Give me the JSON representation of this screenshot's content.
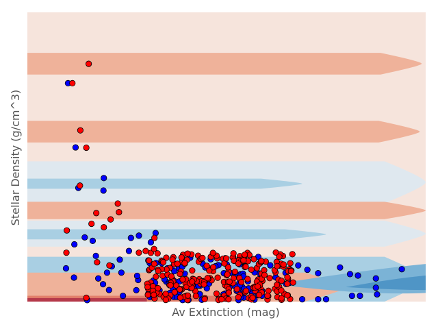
{
  "chart_data": {
    "type": "scatter",
    "title": "",
    "xlabel": "Av Extinction (mag)",
    "ylabel": "Stellar Density (g/cm^3)",
    "xlim": [
      0,
      1
    ],
    "ylim": [
      0,
      1
    ],
    "grid": false,
    "legend": "none",
    "background": "classifier decision-boundary contour (filled)",
    "colors": {
      "class_red": "#ff0000",
      "class_blue": "#0000ff",
      "marker_edge": "#000000",
      "bg_neutral": "#f6e4dc",
      "band_red_light": "#f3c6b4",
      "band_red": "#efb29a",
      "band_red_dark": "#e27f6a",
      "band_red_darkest": "#b5394a",
      "band_blue_pale": "#dfe8ef",
      "band_blue_light": "#a9cfe3",
      "band_blue": "#7bb3d6",
      "band_blue_dark": "#4f95c6"
    },
    "contour_bands": [
      {
        "class": "red",
        "y_min": 0.785,
        "y_max": 0.86,
        "x_extent": 0.99
      },
      {
        "class": "red",
        "y_min": 0.55,
        "y_max": 0.625,
        "x_extent": 0.985
      },
      {
        "class": "blue_pale",
        "y_min": 0.34,
        "y_max": 0.485,
        "x_extent": 1.0
      },
      {
        "class": "blue",
        "y_min": 0.39,
        "y_max": 0.425,
        "x_extent": 0.69
      },
      {
        "class": "red",
        "y_min": 0.285,
        "y_max": 0.345,
        "x_extent": 1.0
      },
      {
        "class": "blue_pale",
        "y_min": 0.19,
        "y_max": 0.28,
        "x_extent": 1.0
      },
      {
        "class": "blue",
        "y_min": 0.215,
        "y_max": 0.25,
        "x_extent": 0.75
      },
      {
        "class": "blue",
        "y_min": 0.0,
        "y_max": 0.155,
        "x_extent": 1.0
      },
      {
        "class": "red",
        "y_min": 0.0,
        "y_max": 0.1,
        "x_extent": 0.8
      },
      {
        "class": "red_dark",
        "y_min": 0.0,
        "y_max": 0.02,
        "x_extent": 0.6
      }
    ],
    "series": [
      {
        "class": "red",
        "points": [
          [
            0.154,
            0.822
          ],
          [
            0.113,
            0.755
          ],
          [
            0.133,
            0.592
          ],
          [
            0.148,
            0.532
          ],
          [
            0.132,
            0.401
          ],
          [
            0.227,
            0.339
          ],
          [
            0.23,
            0.309
          ],
          [
            0.173,
            0.306
          ],
          [
            0.209,
            0.284
          ],
          [
            0.161,
            0.269
          ],
          [
            0.192,
            0.257
          ],
          [
            0.099,
            0.246
          ],
          [
            0.319,
            0.22
          ],
          [
            0.098,
            0.169
          ],
          [
            0.175,
            0.136
          ],
          [
            0.206,
            0.125
          ],
          [
            0.148,
            0.013
          ],
          [
            0.318,
            0.182
          ],
          [
            0.297,
            0.175
          ],
          [
            0.28,
            0.169
          ]
        ]
      },
      {
        "class": "blue",
        "points": [
          [
            0.102,
            0.755
          ],
          [
            0.121,
            0.533
          ],
          [
            0.192,
            0.427
          ],
          [
            0.191,
            0.384
          ],
          [
            0.128,
            0.393
          ],
          [
            0.144,
            0.222
          ],
          [
            0.164,
            0.21
          ],
          [
            0.172,
            0.158
          ],
          [
            0.118,
            0.198
          ],
          [
            0.097,
            0.115
          ],
          [
            0.117,
            0.083
          ],
          [
            0.15,
            0.005
          ],
          [
            0.26,
            0.22
          ],
          [
            0.28,
            0.228
          ],
          [
            0.322,
            0.237
          ],
          [
            0.31,
            0.205
          ],
          [
            0.255,
            0.175
          ],
          [
            0.232,
            0.145
          ],
          [
            0.212,
            0.122
          ],
          [
            0.2,
            0.1
          ],
          [
            0.236,
            0.1
          ],
          [
            0.178,
            0.08
          ],
          [
            0.19,
            0.06
          ],
          [
            0.205,
            0.04
          ],
          [
            0.24,
            0.02
          ],
          [
            0.68,
            0.125
          ],
          [
            0.703,
            0.11
          ],
          [
            0.73,
            0.098
          ],
          [
            0.785,
            0.118
          ],
          [
            0.81,
            0.095
          ],
          [
            0.83,
            0.09
          ],
          [
            0.875,
            0.08
          ],
          [
            0.875,
            0.048
          ],
          [
            0.878,
            0.025
          ],
          [
            0.835,
            0.02
          ],
          [
            0.815,
            0.02
          ],
          [
            0.75,
            0.008
          ],
          [
            0.73,
            0.008
          ],
          [
            0.69,
            0.008
          ],
          [
            0.94,
            0.112
          ]
        ]
      }
    ],
    "clusters": [
      {
        "class": "red",
        "x_range": [
          0.3,
          0.67
        ],
        "y_range": [
          0.005,
          0.17
        ],
        "count": 230
      },
      {
        "class": "blue",
        "x_range": [
          0.27,
          0.66
        ],
        "y_range": [
          0.005,
          0.155
        ],
        "count": 100
      }
    ]
  }
}
